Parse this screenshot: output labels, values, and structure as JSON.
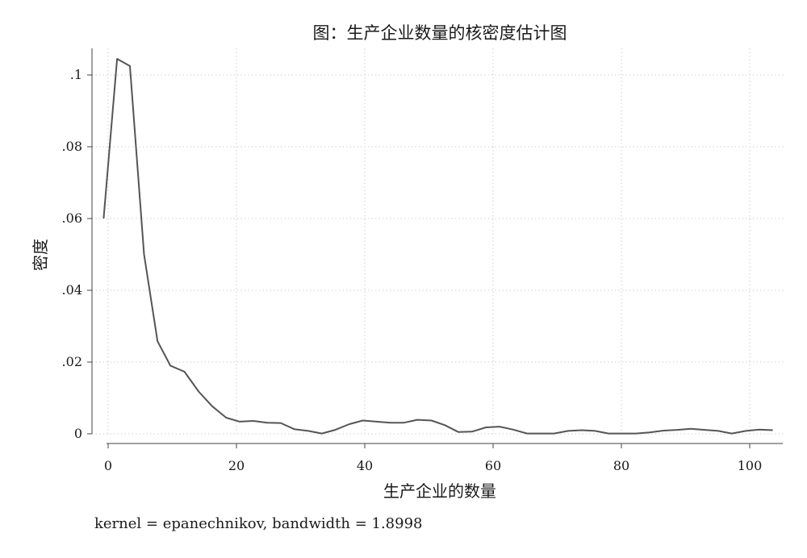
{
  "chart_data": {
    "type": "line",
    "title": "图：生产企业数量的核密度估计图",
    "xlabel": "生产企业的数量",
    "ylabel": "密度",
    "note": "kernel = epanechnikov, bandwidth = 1.8998",
    "xlim": [
      -0.5,
      104
    ],
    "ylim": [
      0,
      0.105
    ],
    "xticks": [
      0,
      20,
      40,
      60,
      80,
      100
    ],
    "xtick_labels": [
      "0",
      "20",
      "40",
      "60",
      "80",
      "100"
    ],
    "yticks": [
      0,
      0.02,
      0.04,
      0.06,
      0.08,
      0.1
    ],
    "ytick_labels": [
      "0",
      ".02",
      ".04",
      ".06",
      ".08",
      ".1"
    ],
    "grid": true,
    "line_color": "#555555",
    "series": [
      {
        "x": [
          -0.7,
          1.4,
          3.4,
          5.6,
          7.7,
          9.7,
          11.9,
          14.1,
          16.2,
          18.4,
          20.5,
          22.6,
          24.8,
          26.9,
          29.0,
          31.2,
          33.3,
          35.4,
          37.6,
          39.7,
          41.8,
          44.0,
          46.1,
          48.2,
          50.4,
          52.5,
          54.6,
          56.7,
          58.9,
          61.0,
          63.1,
          65.3,
          67.4,
          69.5,
          71.7,
          73.8,
          75.9,
          78.0,
          80.2,
          82.3,
          84.4,
          86.6,
          88.7,
          90.8,
          93.0,
          95.1,
          97.2,
          99.4,
          101.5,
          103.6
        ],
        "values": [
          0.06,
          0.1045,
          0.1025,
          0.05,
          0.0258,
          0.019,
          0.0173,
          0.0118,
          0.0077,
          0.0045,
          0.0034,
          0.0036,
          0.0031,
          0.003,
          0.0013,
          0.0008,
          0.0001,
          0.0011,
          0.0027,
          0.0037,
          0.0034,
          0.0031,
          0.0031,
          0.0039,
          0.0037,
          0.0024,
          0.0005,
          0.0006,
          0.0018,
          0.002,
          0.0012,
          0.0001,
          0.0001,
          0.0001,
          0.0008,
          0.001,
          0.0008,
          0.0001,
          0.0001,
          0.0001,
          0.0004,
          0.0009,
          0.0011,
          0.0014,
          0.0011,
          0.0008,
          0.0001,
          0.0008,
          0.0012,
          0.001
        ]
      }
    ]
  }
}
